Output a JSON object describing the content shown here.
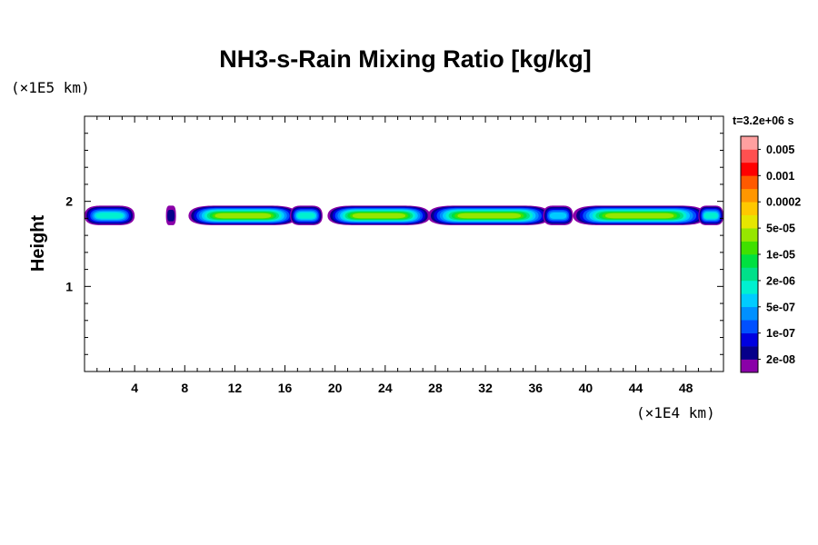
{
  "chart_data": {
    "type": "heatmap",
    "title": "NH3-s-Rain Mixing Ratio [kg/kg]",
    "xlabel": "",
    "ylabel": "Height",
    "x_unit": "(×1E4 km)",
    "y_unit": "(×1E5 km)",
    "time_label": "t=3.2e+06 s",
    "xlim": [
      0,
      51
    ],
    "ylim": [
      0,
      3
    ],
    "x_ticks": [
      4,
      8,
      12,
      16,
      20,
      24,
      28,
      32,
      36,
      40,
      44,
      48
    ],
    "y_ticks": [
      1,
      2
    ],
    "colorbar": {
      "colors": [
        "#8a00a8",
        "#06008a",
        "#0000e0",
        "#0050ff",
        "#0090ff",
        "#00ccff",
        "#00f0d0",
        "#00e08a",
        "#00e040",
        "#40e000",
        "#96e600",
        "#e6e600",
        "#ffc800",
        "#ff9600",
        "#ff5a00",
        "#ff0000",
        "#ff5050",
        "#ffa0a0"
      ],
      "labels": [
        "2e-08",
        "1e-07",
        "5e-07",
        "2e-06",
        "1e-05",
        "5e-05",
        "0.0002",
        "0.001",
        "0.005"
      ]
    },
    "blobs": [
      {
        "x0": 0.0,
        "x1": 4.0,
        "peak": 6
      },
      {
        "x0": 6.5,
        "x1": 7.3,
        "peak": 1
      },
      {
        "x0": 8.3,
        "x1": 17.0,
        "peak": 10
      },
      {
        "x0": 16.4,
        "x1": 19.0,
        "peak": 6
      },
      {
        "x0": 19.4,
        "x1": 27.6,
        "peak": 10
      },
      {
        "x0": 27.4,
        "x1": 37.2,
        "peak": 10
      },
      {
        "x0": 36.6,
        "x1": 39.0,
        "peak": 5
      },
      {
        "x0": 39.0,
        "x1": 49.6,
        "peak": 10
      },
      {
        "x0": 49.0,
        "x1": 51.0,
        "peak": 6
      }
    ]
  }
}
